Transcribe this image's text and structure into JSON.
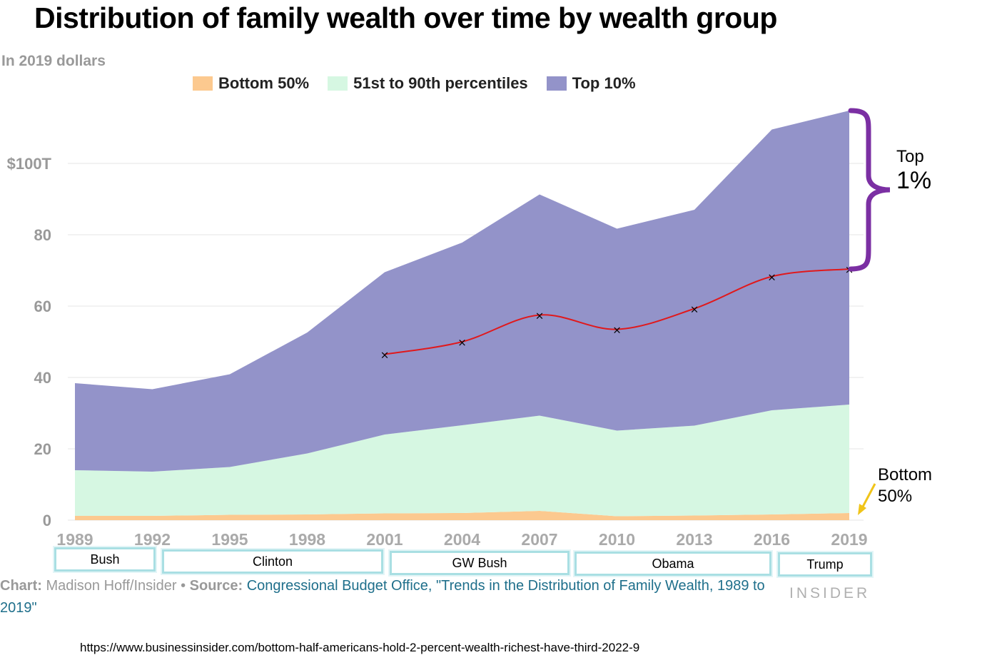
{
  "title": "Distribution of family wealth over time by wealth group",
  "subtitle": "In 2019 dollars",
  "legend": [
    {
      "label": "Bottom 50%",
      "color": "#fcc98f"
    },
    {
      "label": "51st to 90th percentiles",
      "color": "#d6f7e2"
    },
    {
      "label": "Top 10%",
      "color": "#9393c9"
    }
  ],
  "chart_data": {
    "type": "area",
    "stacked": true,
    "x": [
      "1989",
      "1992",
      "1995",
      "1998",
      "2001",
      "2004",
      "2007",
      "2010",
      "2013",
      "2016",
      "2019"
    ],
    "series": [
      {
        "name": "Bottom 50%",
        "color": "#fcc98f",
        "values": [
          1.2,
          1.2,
          1.5,
          1.6,
          1.9,
          2.0,
          2.6,
          1.1,
          1.3,
          1.6,
          2.0
        ]
      },
      {
        "name": "51st to 90th percentiles",
        "color": "#d6f7e2",
        "values": [
          12.8,
          12.4,
          13.4,
          17.1,
          22.1,
          24.6,
          26.7,
          24.0,
          25.2,
          29.2,
          30.4
        ]
      },
      {
        "name": "Top 10%",
        "color": "#9393c9",
        "values": [
          24.4,
          23.1,
          26.0,
          33.9,
          45.5,
          51.2,
          62.0,
          56.6,
          60.5,
          78.7,
          82.4
        ]
      }
    ],
    "overlay": {
      "color": "#e0191c",
      "x": [
        "2001",
        "2004",
        "2007",
        "2010",
        "2013",
        "2016",
        "2019"
      ],
      "y": [
        46.5,
        50,
        57.5,
        53.5,
        59.3,
        68.3,
        70.4
      ]
    },
    "ylim": [
      0,
      115
    ],
    "yticks": [
      0,
      20,
      40,
      60,
      80,
      100
    ],
    "ytick_labels": [
      "0",
      "20",
      "40",
      "60",
      "80",
      "$100T"
    ],
    "grid": true
  },
  "presidents": [
    "Bush",
    "Clinton",
    "GW Bush",
    "Obama",
    "Trump"
  ],
  "annotations": {
    "top_line1": "Top",
    "top_line2": "1%",
    "bottom_line1": "Bottom",
    "bottom_line2": "50%",
    "brace_color": "#7b2fa3",
    "arrow_color": "#f0c419"
  },
  "credit": {
    "chart_label": "Chart:",
    "chart_author": "Madison Hoff/Insider",
    "sep": "•",
    "source_label": "Source:",
    "source_text": "Congressional Budget Office, \"Trends in the Distribution of Family Wealth, 1989 to 2019\""
  },
  "brand": "INSIDER",
  "url": "https://www.businessinsider.com/bottom-half-americans-hold-2-percent-wealth-richest-have-third-2022-9"
}
